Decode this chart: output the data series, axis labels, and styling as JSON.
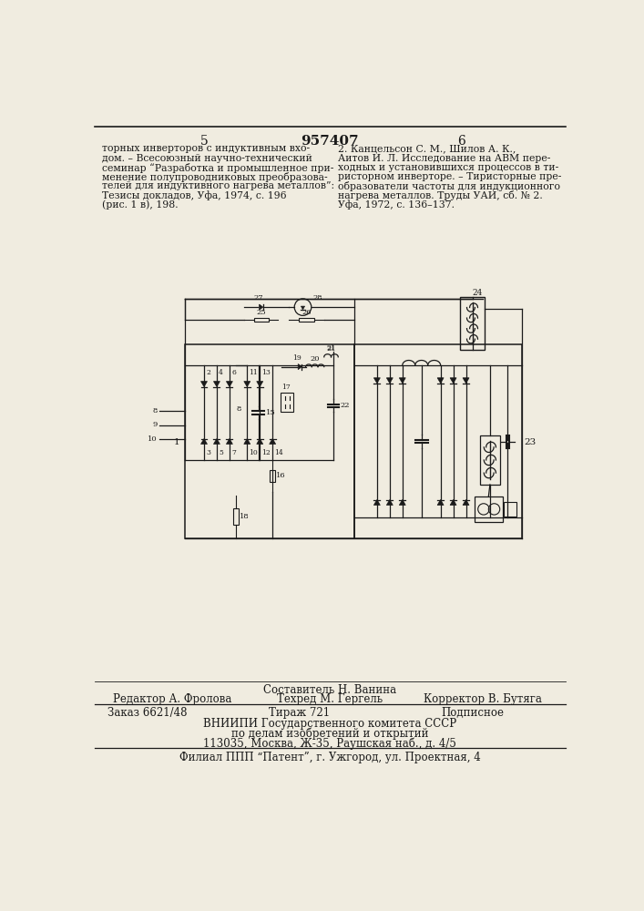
{
  "patent_number": "957407",
  "page_left": "5",
  "page_right": "6",
  "bg": "#f0ece0",
  "tc": "#1a1a1a",
  "ref_left_lines": [
    "торных инверторов с индуктивным вхо-",
    "дом. – Всесоюзный научно-технический",
    "семинар “Разработка и промышленное при-",
    "менение полупроводниковых преобразова-",
    "телей для индуктивного нагрева металлов”:",
    "Тезисы докладов, Уфа, 1974, с. 196",
    "(рис. 1 в), 198."
  ],
  "ref_right_lines": [
    "2. Канцельсон С. М., Шилов А. К.,",
    "Аитов И. Л. Исследование на АВМ пере-",
    "ходных и установившихся процессов в ти-",
    "ристорном инверторе. – Тиристорные пре-",
    "образователи частоты для индукционного",
    "нагрева металлов. Труды УАИ, сб. № 2.",
    "Уфа, 1972, с. 136–137."
  ],
  "footer_sestavitel": "Составитель Н. Ванина",
  "footer_redaktor": "Редактор А. Фролова",
  "footer_tekhred": "Техред М. Гергель",
  "footer_korrektor": "Корректор В. Бутяга",
  "footer_zakaz": "Заказ 6621/48",
  "footer_tirazh": "Тираж 721",
  "footer_podpisnoe": "Подписное",
  "footer_vniip1": "ВНИИПИ Государственного комитета СССР",
  "footer_vniip2": "по делам изобретений и открытий",
  "footer_address": "113035, Москва, Ж-35, Раушская наб., д. 4/5",
  "footer_filial": "Филиал ППП “Патент”, г. Ужгород, ул. Проектная, 4"
}
